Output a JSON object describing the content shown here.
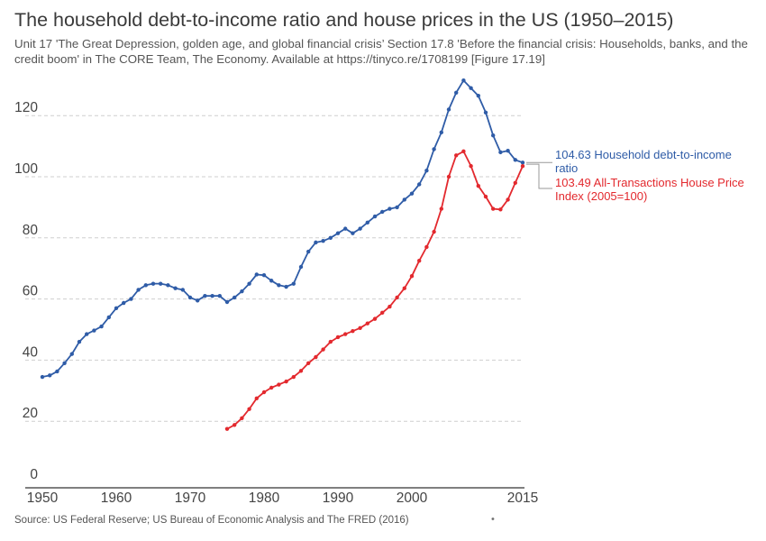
{
  "title": "The household debt-to-income ratio and house prices in the US (1950–2015)",
  "subtitle": "Unit 17 'The Great Depression, golden age, and global financial crisis’ Section 17.8 'Before the financial crisis: Households, banks, and the credit boom' in The CORE Team, The Economy. Available at https://tinyco.re/1708199 [Figure 17.19]",
  "source": "Source: US Federal Reserve; US Bureau of Economic Analysis and The FRED (2016)",
  "footer_mark": "•",
  "chart_data": {
    "type": "line",
    "title": "The household debt-to-income ratio and house prices in the US (1950–2015)",
    "xlabel": "",
    "ylabel": "",
    "xlim": [
      1950,
      2015
    ],
    "ylim": [
      0,
      130
    ],
    "x_ticks": [
      1950,
      1960,
      1970,
      1980,
      1990,
      2000,
      2015
    ],
    "y_ticks": [
      0,
      20,
      40,
      60,
      80,
      100,
      120
    ],
    "grid": "horizontal dashed",
    "legend": "end-of-line labels at right",
    "series": [
      {
        "name": "Household debt-to-income ratio",
        "end_label": "104.63 Household debt-to-income ratio",
        "color": "#2f5ca7",
        "x": [
          1950,
          1951,
          1952,
          1953,
          1954,
          1955,
          1956,
          1957,
          1958,
          1959,
          1960,
          1961,
          1962,
          1963,
          1964,
          1965,
          1966,
          1967,
          1968,
          1969,
          1970,
          1971,
          1972,
          1973,
          1974,
          1975,
          1976,
          1977,
          1978,
          1979,
          1980,
          1981,
          1982,
          1983,
          1984,
          1985,
          1986,
          1987,
          1988,
          1989,
          1990,
          1991,
          1992,
          1993,
          1994,
          1995,
          1996,
          1997,
          1998,
          1999,
          2000,
          2001,
          2002,
          2003,
          2004,
          2005,
          2006,
          2007,
          2008,
          2009,
          2010,
          2011,
          2012,
          2013,
          2014,
          2015
        ],
        "values": [
          34.5,
          35,
          36.3,
          39,
          42,
          46,
          48.5,
          49.7,
          51,
          54,
          57,
          58.7,
          60,
          63,
          64.5,
          65,
          65,
          64.5,
          63.5,
          63,
          60.5,
          59.5,
          61,
          61,
          61,
          59,
          60.5,
          62.5,
          65,
          68,
          67.8,
          66,
          64.5,
          64,
          65,
          70.5,
          75.5,
          78.5,
          79,
          80,
          81.5,
          83,
          81.5,
          83,
          85,
          87,
          88.5,
          89.5,
          90,
          92.5,
          94.5,
          97.5,
          102,
          109,
          114.5,
          122,
          127.5,
          131.5,
          129,
          126.5,
          121,
          113.5,
          108,
          108.5,
          105.5,
          104.63
        ]
      },
      {
        "name": "All-Transactions House Price Index (2005=100)",
        "end_label": "103.49 All-Transactions House Price Index (2005=100)",
        "color": "#e3292e",
        "x": [
          1975,
          1976,
          1977,
          1978,
          1979,
          1980,
          1981,
          1982,
          1983,
          1984,
          1985,
          1986,
          1987,
          1988,
          1989,
          1990,
          1991,
          1992,
          1993,
          1994,
          1995,
          1996,
          1997,
          1998,
          1999,
          2000,
          2001,
          2002,
          2003,
          2004,
          2005,
          2006,
          2007,
          2008,
          2009,
          2010,
          2011,
          2012,
          2013,
          2014,
          2015
        ],
        "values": [
          17.5,
          18.8,
          21,
          24,
          27.5,
          29.5,
          31,
          32,
          33,
          34.5,
          36.5,
          39,
          41,
          43.5,
          46,
          47.5,
          48.5,
          49.5,
          50.5,
          52,
          53.5,
          55.5,
          57.5,
          60.5,
          63.5,
          67.5,
          72.5,
          77,
          82,
          89.5,
          100,
          107,
          108.3,
          103.5,
          97,
          93.5,
          89.5,
          89.3,
          92.5,
          98,
          103.49
        ]
      }
    ]
  }
}
